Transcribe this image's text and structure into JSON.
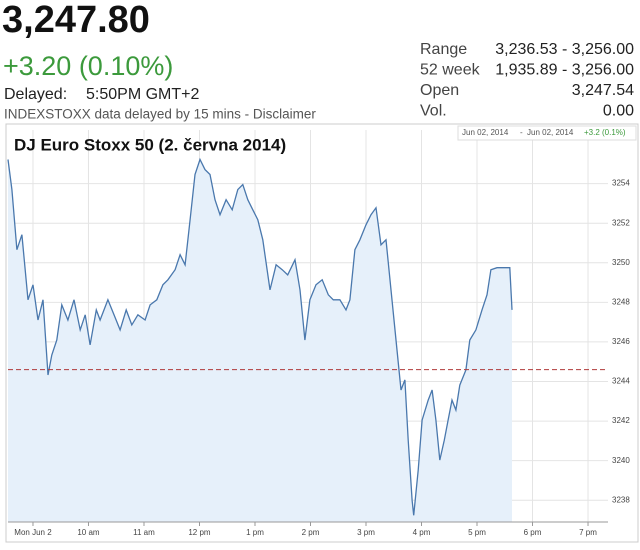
{
  "header": {
    "price": "3,247.80",
    "change": "+3.20 (0.10%)",
    "delayed_label": "Delayed:",
    "delayed_time": "5:50PM GMT+2",
    "note": "INDEXSTOXX data delayed by 15 mins - Disclaimer"
  },
  "stats": [
    {
      "label": "Range",
      "value": "3,236.53 - 3,256.00"
    },
    {
      "label": "52 week",
      "value": "1,935.89 - 3,256.00"
    },
    {
      "label": "Open",
      "value": "3,247.54"
    },
    {
      "label": "Vol.",
      "value": "0.00"
    }
  ],
  "range_box": {
    "from": "Jun 02, 2014",
    "sep": "-",
    "to": "Jun 02, 2014",
    "change": "+3.2 (0.1%)"
  },
  "chart_data": {
    "type": "line",
    "title": "DJ Euro Stoxx 50 (2. června 2014)",
    "x": [
      8.55,
      8.62,
      8.71,
      8.8,
      8.91,
      9.0,
      9.09,
      9.18,
      9.27,
      9.34,
      9.43,
      9.52,
      9.63,
      9.74,
      9.85,
      9.94,
      10.03,
      10.14,
      10.21,
      10.35,
      10.46,
      10.57,
      10.68,
      10.78,
      10.89,
      11.02,
      11.11,
      11.23,
      11.34,
      11.43,
      11.56,
      11.65,
      11.74,
      11.83,
      11.92,
      12.01,
      12.1,
      12.19,
      12.28,
      12.37,
      12.48,
      12.59,
      12.69,
      12.78,
      12.87,
      12.96,
      13.05,
      13.14,
      13.27,
      13.38,
      13.49,
      13.59,
      13.72,
      13.81,
      13.9,
      13.99,
      14.1,
      14.21,
      14.32,
      14.41,
      14.53,
      14.64,
      14.71,
      14.8,
      14.89,
      15.0,
      15.09,
      15.18,
      15.27,
      15.36,
      15.45,
      15.54,
      15.63,
      15.7,
      15.76,
      15.83,
      15.86,
      15.94,
      16.01,
      16.12,
      16.19,
      16.26,
      16.33,
      16.41,
      16.48,
      16.55,
      16.62,
      16.69,
      16.8,
      16.87,
      16.98,
      17.09,
      17.18,
      17.25,
      17.36,
      17.5,
      17.59,
      17.63
    ],
    "values": [
      3255.22,
      3253.7,
      3250.66,
      3251.42,
      3248.13,
      3248.89,
      3247.11,
      3248.13,
      3244.33,
      3245.34,
      3246.1,
      3247.87,
      3247.11,
      3248.13,
      3246.61,
      3247.37,
      3245.85,
      3247.62,
      3247.11,
      3248.13,
      3247.37,
      3246.61,
      3247.62,
      3246.86,
      3247.37,
      3247.11,
      3247.87,
      3248.13,
      3248.89,
      3249.14,
      3249.65,
      3250.41,
      3249.9,
      3252.18,
      3254.46,
      3255.22,
      3254.71,
      3254.46,
      3253.19,
      3252.43,
      3253.19,
      3252.68,
      3253.7,
      3253.95,
      3253.19,
      3252.68,
      3252.18,
      3251.16,
      3248.63,
      3249.9,
      3249.65,
      3249.39,
      3250.15,
      3248.63,
      3246.1,
      3248.13,
      3248.89,
      3249.14,
      3248.38,
      3248.13,
      3248.13,
      3247.62,
      3248.13,
      3250.66,
      3251.16,
      3251.92,
      3252.43,
      3252.78,
      3250.91,
      3251.16,
      3248.63,
      3246.1,
      3243.57,
      3244.08,
      3241.04,
      3238.0,
      3237.24,
      3239.52,
      3242.05,
      3243.06,
      3243.57,
      3242.05,
      3240.03,
      3241.04,
      3242.05,
      3243.06,
      3242.56,
      3243.82,
      3244.58,
      3246.1,
      3246.61,
      3247.62,
      3248.38,
      3249.65,
      3249.75,
      3249.75,
      3249.75,
      3247.62
    ],
    "color": "#4a78ad",
    "area": true,
    "area_color": "#e6f0fa",
    "prev_close": 3244.6,
    "prev_close_color": "#b03a3a",
    "xlim": [
      8.55,
      19.36
    ],
    "ylim": [
      3236.9,
      3255.7
    ],
    "xticks": [
      {
        "value": 9,
        "label": "Mon Jun 2"
      },
      {
        "value": 10,
        "label": "10 am"
      },
      {
        "value": 11,
        "label": "11 am"
      },
      {
        "value": 12,
        "label": "12 pm"
      },
      {
        "value": 13,
        "label": "1 pm"
      },
      {
        "value": 14,
        "label": "2 pm"
      },
      {
        "value": 15,
        "label": "3 pm"
      },
      {
        "value": 16,
        "label": "4 pm"
      },
      {
        "value": 17,
        "label": "5 pm"
      },
      {
        "value": 18,
        "label": "6 pm"
      },
      {
        "value": 19,
        "label": "7 pm"
      }
    ],
    "yticks": [
      3238,
      3240,
      3242,
      3244,
      3246,
      3248,
      3250,
      3252,
      3254
    ],
    "grid": true
  }
}
